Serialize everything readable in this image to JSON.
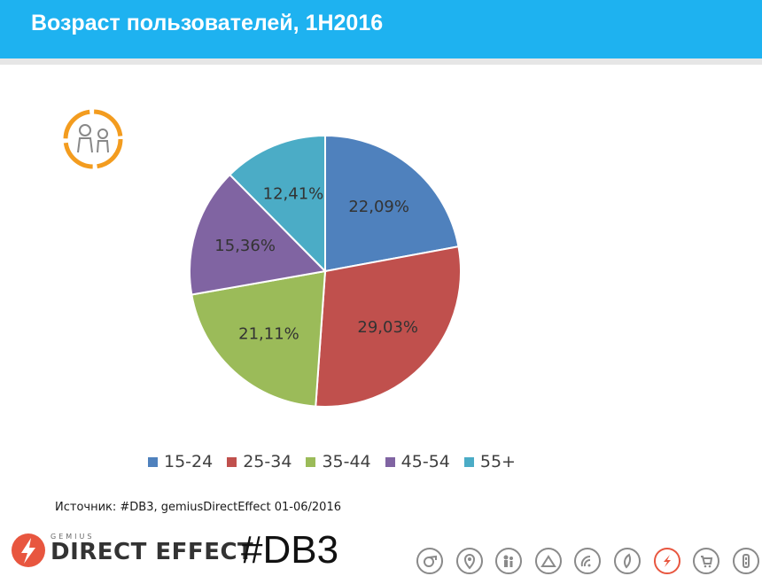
{
  "header": {
    "title": "Возраст пользователей, 1H2016"
  },
  "chart_data": {
    "type": "pie",
    "categories": [
      "15-24",
      "25-34",
      "35-44",
      "45-54",
      "55+"
    ],
    "values": [
      22.09,
      29.03,
      21.11,
      15.36,
      12.41
    ],
    "value_labels": [
      "22,09%",
      "29,03%",
      "21,11%",
      "15,36%",
      "12,41%"
    ],
    "colors": [
      "#4f81bd",
      "#c0504d",
      "#9bbb59",
      "#8064a2",
      "#4bacc6"
    ],
    "legend": "bottom"
  },
  "source": {
    "text": "Источник: #DB3, gemiusDirectEffect 01-06/2016"
  },
  "branding": {
    "logo_small": "GEMIUS",
    "logo_text": "DIRECT EFFECT",
    "hashtag": "#DB3"
  },
  "nav": {
    "icons": [
      "whistle-icon",
      "location-icon",
      "people-icon",
      "mountain-icon",
      "wifi-icon",
      "leaf-icon",
      "lightning-icon",
      "cart-icon",
      "battery-icon"
    ],
    "active_index": 6
  }
}
